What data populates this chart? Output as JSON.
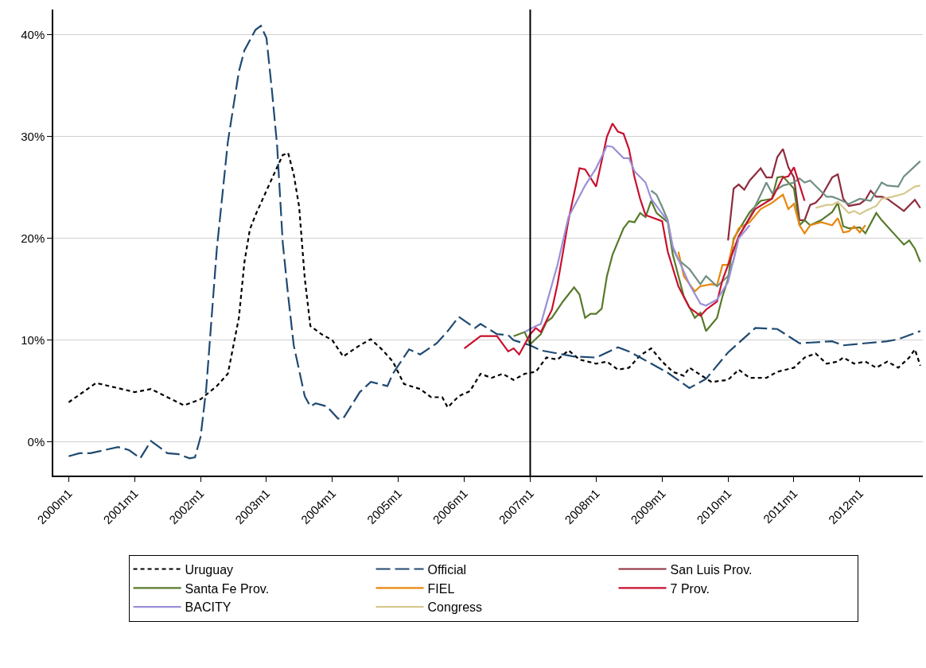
{
  "chart_data": {
    "type": "line",
    "xlim": [
      "1999-10-08",
      "2012-12-15"
    ],
    "xticks": [
      {
        "value": "2000-01",
        "label": "2000m1"
      },
      {
        "value": "2001-01",
        "label": "2001m1"
      },
      {
        "value": "2002-01",
        "label": "2002m1"
      },
      {
        "value": "2003-01",
        "label": "2003m1"
      },
      {
        "value": "2004-01",
        "label": "2004m1"
      },
      {
        "value": "2005-01",
        "label": "2005m1"
      },
      {
        "value": "2006-01",
        "label": "2006m1"
      },
      {
        "value": "2007-01",
        "label": "2007m1"
      },
      {
        "value": "2008-01",
        "label": "2008m1"
      },
      {
        "value": "2009-01",
        "label": "2009m1"
      },
      {
        "value": "2010-01",
        "label": "2010m1"
      },
      {
        "value": "2011-01",
        "label": "2011m1"
      },
      {
        "value": "2012-01",
        "label": "2012m1"
      }
    ],
    "ylim": [
      -3.3,
      42.5
    ],
    "yticks": [
      {
        "value": 0,
        "label": "0%"
      },
      {
        "value": 10,
        "label": "10%"
      },
      {
        "value": 20,
        "label": "20%"
      },
      {
        "value": 30,
        "label": "30%"
      },
      {
        "value": 40,
        "label": "40%"
      }
    ],
    "grid": "y",
    "legend": "bottom",
    "ref_lines": [
      {
        "axis": "x",
        "value": "2007-01",
        "color": "#000000",
        "line_style": "solid"
      }
    ],
    "series": [
      {
        "name": "Uruguay",
        "color": "#000000",
        "line_style": "dotted",
        "x": [
          "2000-01",
          "2000-06",
          "2001-01",
          "2001-04",
          "2001-07",
          "2001-10",
          "2002-01",
          "2002-04",
          "2002-06",
          "2002-08",
          "2002-09",
          "2002-10",
          "2002-11",
          "2003-01",
          "2003-03",
          "2003-04",
          "2003-05",
          "2003-06",
          "2003-07",
          "2003-08",
          "2003-09",
          "2003-11",
          "2004-01",
          "2004-03",
          "2004-06",
          "2004-08",
          "2004-10",
          "2004-12",
          "2005-02",
          "2005-05",
          "2005-07",
          "2005-09",
          "2005-10",
          "2005-12",
          "2006-02",
          "2006-04",
          "2006-06",
          "2006-08",
          "2006-10",
          "2006-12",
          "2007-02",
          "2007-04",
          "2007-06",
          "2007-08",
          "2007-10",
          "2008-01",
          "2008-03",
          "2008-05",
          "2008-07",
          "2008-09",
          "2008-11",
          "2009-01",
          "2009-03",
          "2009-05",
          "2009-06",
          "2009-08",
          "2009-10",
          "2010-01",
          "2010-03",
          "2010-05",
          "2010-08",
          "2010-10",
          "2011-01",
          "2011-03",
          "2011-05",
          "2011-07",
          "2011-09",
          "2011-10",
          "2011-12",
          "2012-02",
          "2012-04",
          "2012-06",
          "2012-08",
          "2012-10",
          "2012-11",
          "2012-12"
        ],
        "values": [
          3.9,
          5.8,
          4.9,
          5.2,
          4.4,
          3.6,
          4.2,
          5.5,
          6.7,
          12.2,
          17.7,
          20.9,
          22.3,
          24.7,
          27,
          28.2,
          28.4,
          26.3,
          23.1,
          16.1,
          11.4,
          10.6,
          10,
          8.4,
          9.5,
          10.1,
          9.1,
          7.9,
          5.7,
          5.2,
          4.4,
          4.4,
          3.4,
          4.5,
          5,
          6.7,
          6.3,
          6.7,
          6.1,
          6.7,
          6.9,
          8.3,
          8.1,
          9,
          8.1,
          7.7,
          7.9,
          7.1,
          7.3,
          8.5,
          9.2,
          7.9,
          6.9,
          6.5,
          7.3,
          6.6,
          5.9,
          6.1,
          7.1,
          6.3,
          6.3,
          6.9,
          7.3,
          8.3,
          8.7,
          7.7,
          7.9,
          8.3,
          7.7,
          7.9,
          7.3,
          7.9,
          7.3,
          8.3,
          9.1,
          7.5
        ]
      },
      {
        "name": "Official",
        "color": "#1f4a72",
        "line_style": "dashed",
        "x": [
          "2000-01",
          "2000-03",
          "2000-05",
          "2000-10",
          "2000-12",
          "2001-02",
          "2001-04",
          "2001-07",
          "2001-09",
          "2001-11",
          "2001-12",
          "2002-01",
          "2002-02",
          "2002-04",
          "2002-06",
          "2002-08",
          "2002-09",
          "2002-11",
          "2002-12",
          "2003-01",
          "2003-02",
          "2003-03",
          "2003-04",
          "2003-05",
          "2003-06",
          "2003-08",
          "2003-09",
          "2003-10",
          "2003-12",
          "2004-02",
          "2004-03",
          "2004-06",
          "2004-08",
          "2004-11",
          "2004-12",
          "2005-03",
          "2005-05",
          "2005-08",
          "2005-10",
          "2005-12",
          "2006-03",
          "2006-04",
          "2006-07",
          "2006-09",
          "2006-10",
          "2007-01",
          "2007-03",
          "2007-06",
          "2007-09",
          "2008-01",
          "2008-05",
          "2008-07",
          "2008-09",
          "2009-02",
          "2009-06",
          "2009-09",
          "2010-01",
          "2010-06",
          "2010-10",
          "2011-02",
          "2011-08",
          "2011-10",
          "2012-06",
          "2012-08",
          "2012-12"
        ],
        "values": [
          -1.4,
          -1.1,
          -1.1,
          -0.5,
          -0.8,
          -1.6,
          0.1,
          -1.1,
          -1.2,
          -1.6,
          -1.5,
          0.5,
          5.2,
          19,
          29.5,
          36.4,
          38.5,
          40.5,
          40.9,
          39.7,
          34.4,
          29.1,
          19.6,
          14.4,
          9.5,
          4.5,
          3.5,
          3.8,
          3.5,
          2.3,
          2.3,
          4.9,
          5.9,
          5.5,
          6.7,
          9.1,
          8.6,
          9.7,
          10.9,
          12.3,
          11.2,
          11.6,
          10.6,
          10.5,
          10,
          9.5,
          9,
          8.7,
          8.4,
          8.3,
          9.3,
          8.9,
          8.3,
          6.8,
          5.3,
          6.2,
          8.8,
          11.2,
          11.1,
          9.7,
          9.9,
          9.5,
          9.9,
          10.1,
          10.9
        ]
      },
      {
        "name": "San Luis Prov.",
        "color": "#8e2c3e",
        "x": [
          "2010-01",
          "2010-02",
          "2010-03",
          "2010-04",
          "2010-05",
          "2010-07",
          "2010-08",
          "2010-09",
          "2010-10",
          "2010-11",
          "2010-12",
          "2011-01",
          "2011-02",
          "2011-03",
          "2011-04",
          "2011-05",
          "2011-06",
          "2011-08",
          "2011-09",
          "2011-10",
          "2011-11",
          "2012-01",
          "2012-02",
          "2012-03",
          "2012-04",
          "2012-05",
          "2012-06",
          "2012-08",
          "2012-09",
          "2012-11",
          "2012-12"
        ],
        "values": [
          19.8,
          24.9,
          25.3,
          24.8,
          25.7,
          26.9,
          26,
          26,
          28,
          28.8,
          27,
          26,
          21.8,
          21.8,
          23.3,
          23.5,
          24.1,
          26,
          26.3,
          23.9,
          23.2,
          23.4,
          23.8,
          24.7,
          24.1,
          24.1,
          23.9,
          23.1,
          22.7,
          23.8,
          23
        ]
      },
      {
        "name": "Santa Fe Prov.",
        "color": "#587a2c",
        "x": [
          "2006-10",
          "2006-12",
          "2007-01",
          "2007-03",
          "2007-04",
          "2007-05",
          "2007-07",
          "2007-09",
          "2007-10",
          "2007-11",
          "2007-12",
          "2008-01",
          "2008-02",
          "2008-03",
          "2008-04",
          "2008-06",
          "2008-07",
          "2008-08",
          "2008-09",
          "2008-10",
          "2008-11",
          "2008-12",
          "2009-02",
          "2009-03",
          "2009-05",
          "2009-07",
          "2009-08",
          "2009-09",
          "2009-11",
          "2009-12",
          "2010-01",
          "2010-02",
          "2010-05",
          "2010-07",
          "2010-09",
          "2010-10",
          "2010-11",
          "2011-01",
          "2011-02",
          "2011-03",
          "2011-04",
          "2011-06",
          "2011-08",
          "2011-09",
          "2011-10",
          "2011-11",
          "2012-01",
          "2012-02",
          "2012-04",
          "2012-05",
          "2012-08",
          "2012-09",
          "2012-10",
          "2012-11",
          "2012-12"
        ],
        "values": [
          10.4,
          10.8,
          9.6,
          10.6,
          11.8,
          12.2,
          13.8,
          15.2,
          14.5,
          12.2,
          12.6,
          12.6,
          13.1,
          16.3,
          18.4,
          21,
          21.7,
          21.6,
          22.5,
          22.1,
          23.7,
          22.5,
          21.6,
          18.4,
          14.3,
          12.2,
          12.7,
          10.9,
          12.2,
          14.3,
          16,
          20,
          22.6,
          23.7,
          23.9,
          26,
          26.1,
          24.9,
          21.3,
          21.8,
          21.3,
          21.8,
          22.6,
          23.5,
          21.2,
          21,
          21.1,
          20.5,
          22.5,
          21.8,
          20,
          19.4,
          19.8,
          19,
          17.7
        ]
      },
      {
        "name": "FIEL",
        "color": "#e8870e",
        "x": [
          "2009-04",
          "2009-05",
          "2009-07",
          "2009-08",
          "2009-10",
          "2009-11",
          "2009-12",
          "2010-01",
          "2010-02",
          "2010-03",
          "2010-05",
          "2010-07",
          "2010-09",
          "2010-10",
          "2010-11",
          "2010-12",
          "2011-01",
          "2011-02",
          "2011-03",
          "2011-04",
          "2011-06",
          "2011-08",
          "2011-09",
          "2011-10",
          "2011-11",
          "2011-12",
          "2012-01",
          "2012-02"
        ],
        "values": [
          18.7,
          16.3,
          14.8,
          15.3,
          15.5,
          15.4,
          17.4,
          17.4,
          19.8,
          21,
          21.6,
          22.9,
          23.5,
          23.9,
          24.3,
          22.9,
          23.4,
          21.3,
          20.5,
          21.3,
          21.6,
          21.3,
          22,
          20.6,
          20.7,
          21.2,
          20.6,
          21.3
        ]
      },
      {
        "name": null,
        "color": "#6f8f82",
        "x": [
          "2008-11",
          "2008-12",
          "2009-01",
          "2009-02",
          "2009-03",
          "2009-04",
          "2009-06",
          "2009-08",
          "2009-09",
          "2009-11",
          "2010-01",
          "2010-02",
          "2010-03",
          "2010-05",
          "2010-07",
          "2010-08",
          "2010-09",
          "2010-11",
          "2011-01",
          "2011-02",
          "2011-03",
          "2011-04",
          "2011-07",
          "2011-08",
          "2011-09",
          "2011-11",
          "2012-01",
          "2012-03",
          "2012-05",
          "2012-06",
          "2012-08",
          "2012-09",
          "2012-12"
        ],
        "values": [
          24.7,
          24.3,
          23.1,
          21.8,
          19,
          17.9,
          17,
          15.5,
          16.3,
          15.3,
          16.3,
          17.9,
          20.2,
          22.1,
          24.3,
          25.5,
          24.5,
          25.2,
          25.5,
          25.9,
          25.5,
          25.7,
          24.1,
          24.1,
          23.9,
          23.4,
          23.9,
          23.7,
          25.5,
          25.2,
          25.1,
          26.1,
          27.6
        ]
      },
      {
        "name": "7 Prov.",
        "color": "#c8102e",
        "x": [
          "2006-01",
          "2006-04",
          "2006-07",
          "2006-09",
          "2006-10",
          "2006-11",
          "2007-01",
          "2007-02",
          "2007-03",
          "2007-05",
          "2007-06",
          "2007-08",
          "2007-10",
          "2007-11",
          "2008-01",
          "2008-03",
          "2008-04",
          "2008-05",
          "2008-06",
          "2008-07",
          "2008-08",
          "2008-09",
          "2008-10",
          "2009-01",
          "2009-02",
          "2009-04",
          "2009-06",
          "2009-08",
          "2009-09",
          "2009-11",
          "2009-12",
          "2010-03",
          "2010-06",
          "2010-09",
          "2010-11",
          "2010-12",
          "2011-01",
          "2011-03"
        ],
        "values": [
          9.2,
          10.4,
          10.4,
          8.9,
          9.2,
          8.6,
          10.6,
          11.2,
          10.8,
          13,
          15.5,
          21.8,
          26.9,
          26.8,
          25.1,
          30,
          31.3,
          30.5,
          30.3,
          28.8,
          26,
          23.9,
          22.3,
          21.7,
          18.7,
          15.3,
          13.2,
          12.4,
          13,
          13.8,
          15.9,
          20.2,
          22.9,
          23.9,
          26,
          26.1,
          27,
          23.7
        ]
      },
      {
        "name": "BACITY",
        "color": "#9a90d8",
        "x": [
          "2006-12",
          "2007-02",
          "2007-03",
          "2007-06",
          "2007-08",
          "2007-11",
          "2008-01",
          "2008-03",
          "2008-04",
          "2008-06",
          "2008-07",
          "2008-08",
          "2008-10",
          "2008-11",
          "2009-02",
          "2009-03",
          "2009-06",
          "2009-08",
          "2009-09",
          "2009-11",
          "2010-01",
          "2010-03",
          "2010-05"
        ],
        "values": [
          10.8,
          11.4,
          11.6,
          17.4,
          22.1,
          25.2,
          26.9,
          29.1,
          29,
          27.9,
          27.9,
          26.6,
          25.5,
          23.9,
          21.7,
          19.2,
          15.5,
          13.6,
          13.4,
          14,
          15.7,
          20,
          21.3
        ]
      },
      {
        "name": "Congress",
        "color": "#d6c88c",
        "x": [
          "2011-05",
          "2011-07",
          "2011-08",
          "2011-09",
          "2011-11",
          "2011-12",
          "2012-01",
          "2012-02",
          "2012-04",
          "2012-05",
          "2012-07",
          "2012-09",
          "2012-11",
          "2012-12"
        ],
        "values": [
          23,
          23.3,
          23.3,
          23.6,
          22.5,
          22.7,
          22.4,
          22.7,
          23.2,
          23.9,
          24.1,
          24.4,
          25.1,
          25.2
        ]
      }
    ]
  }
}
